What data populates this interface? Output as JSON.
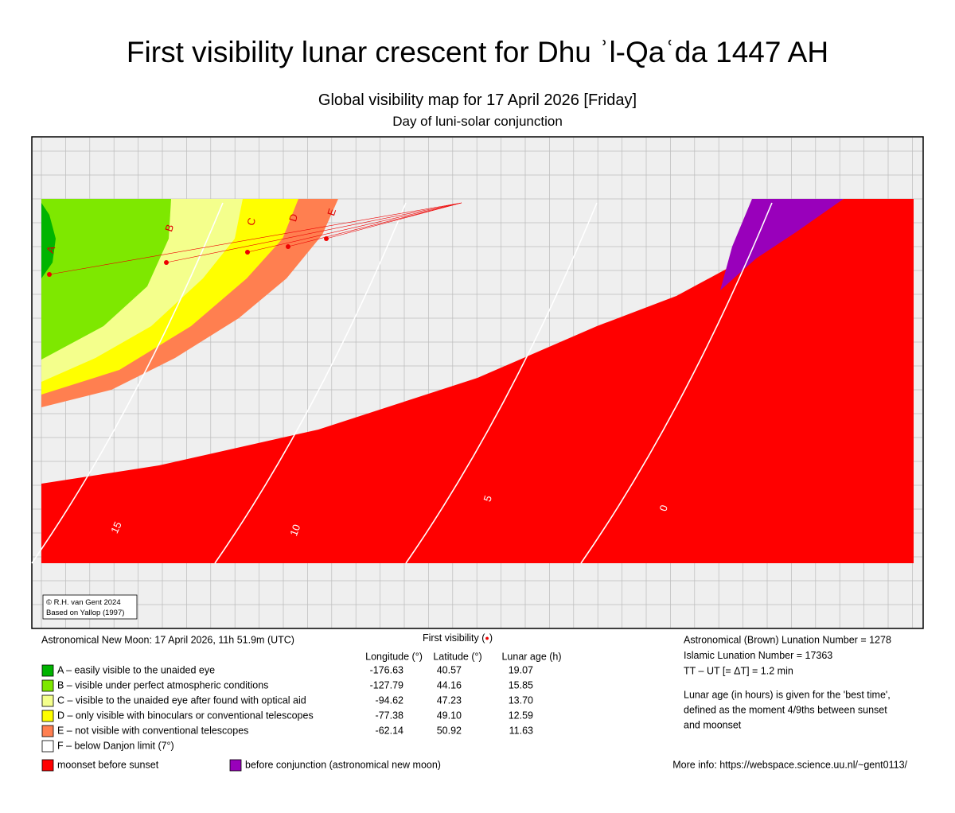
{
  "header": {
    "title": "First visibility lunar crescent for Dhu ʾl-Qaʿda 1447 AH",
    "subtitle": "Global visibility map for 17 April 2026 [Friday]",
    "note": "Day of luni-solar conjunction"
  },
  "map": {
    "zone_labels": [
      "A",
      "B",
      "C",
      "D",
      "E"
    ],
    "contour_labels": [
      "15",
      "10",
      "5",
      "0"
    ],
    "credit": [
      "© R.H. van Gent 2024",
      "Based on Yallop (1997)"
    ]
  },
  "legend": {
    "new_moon": "Astronomical New Moon: 17 April 2026, 11h 51.9m (UTC)",
    "first_visibility": [
      "First visibility (",
      "●",
      ")"
    ],
    "columns": [
      "Longitude (°)",
      "Latitude (°)",
      "Lunar age (h)"
    ],
    "rows": [
      {
        "color": "#00b400",
        "label": "A – easily visible to the unaided eye",
        "longitude": "-176.63",
        "latitude": "40.57",
        "age": "19.07"
      },
      {
        "color": "#7ee800",
        "label": "B – visible under perfect atmospheric conditions",
        "longitude": "-127.79",
        "latitude": "44.16",
        "age": "15.85"
      },
      {
        "color": "#f4ff8c",
        "label": "C – visible to the unaided eye after found with optical aid",
        "longitude": "-94.62",
        "latitude": "47.23",
        "age": "13.70"
      },
      {
        "color": "#ffff00",
        "label": "D – only visible with binoculars or conventional telescopes",
        "longitude": "-77.38",
        "latitude": "49.10",
        "age": "12.59"
      },
      {
        "color": "#ff7f50",
        "label": "E – not visible with conventional telescopes",
        "longitude": "-62.14",
        "latitude": "50.92",
        "age": "11.63"
      },
      {
        "color": "#ffffff",
        "label": "F – below Danjon limit (7°)"
      }
    ],
    "extra": [
      {
        "color": "#ff0000",
        "label": "moonset before sunset"
      },
      {
        "color": "#9900bb",
        "label": "before conjunction (astronomical new moon)"
      }
    ]
  },
  "info": [
    "Astronomical (Brown) Lunation Number = 1278",
    "Islamic Lunation Number = 17363",
    "TT – UT [= ΔT] = 1.2 min"
  ],
  "notes": [
    "Lunar age (in hours) is given for the 'best time',",
    "defined as the moment 4/9ths between sunset",
    "and moonset"
  ],
  "more_info": "More info: https://webspace.science.uu.nl/~gent0113/"
}
